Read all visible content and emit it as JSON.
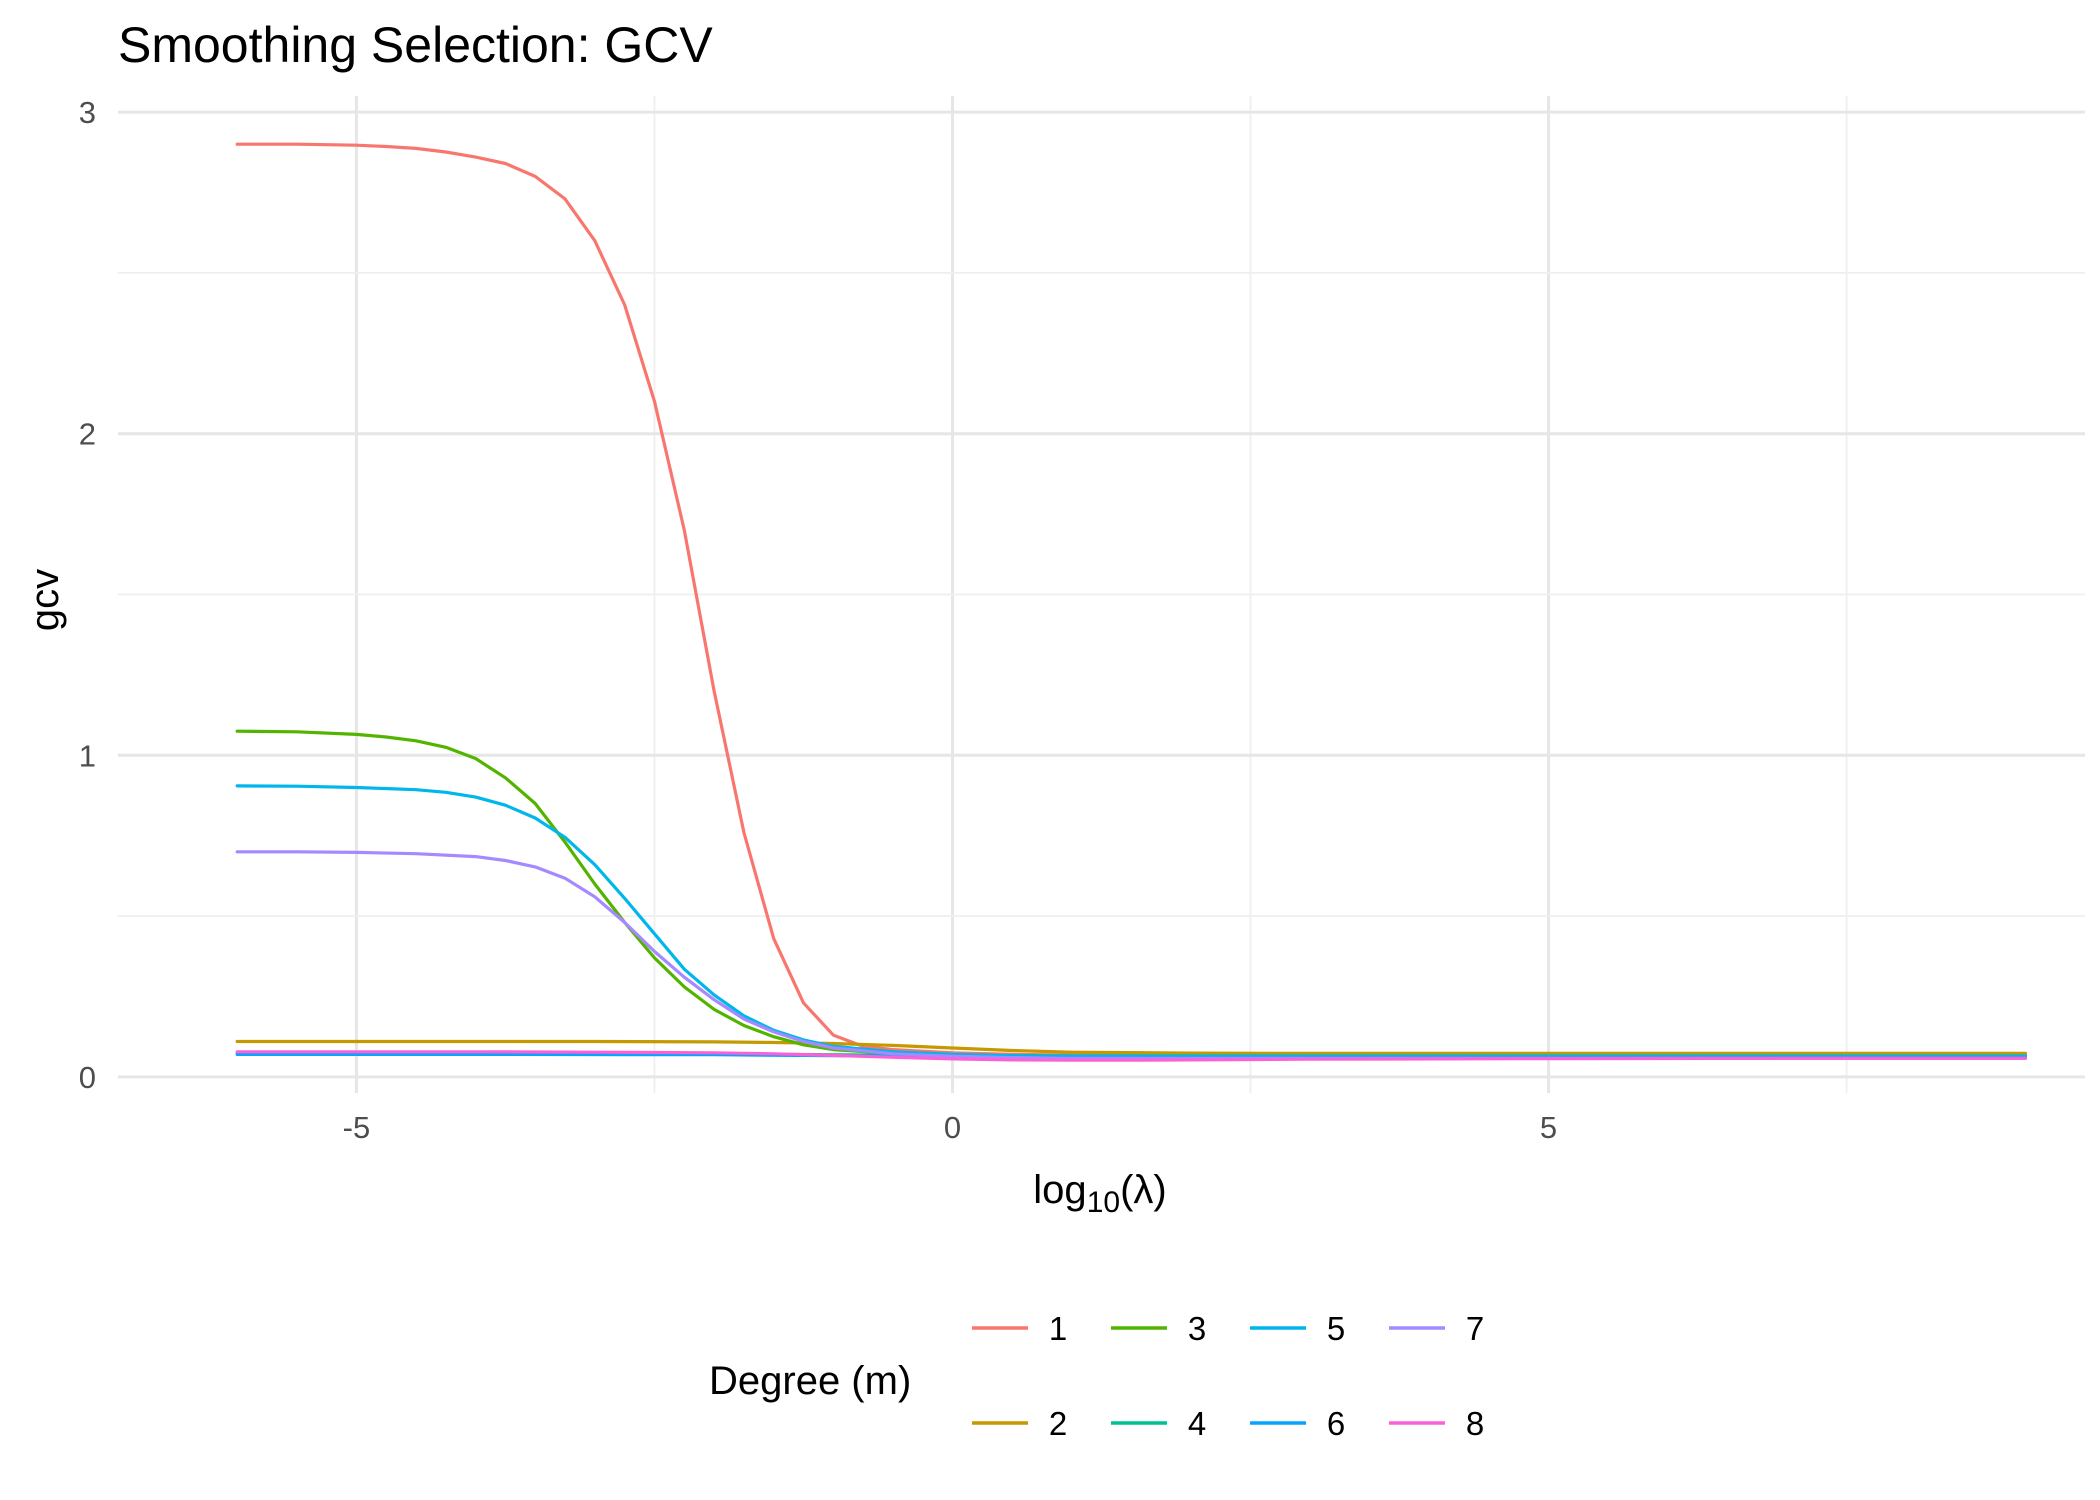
{
  "chart_data": {
    "type": "line",
    "title": "Smoothing Selection: GCV",
    "xlabel": {
      "main": "log",
      "subscript": "10",
      "argument": "(λ)"
    },
    "ylabel": "gcv",
    "xlim": [
      -7,
      9.5
    ],
    "ylim": [
      -0.05,
      3.05
    ],
    "x_ticks": [
      -5,
      0,
      5
    ],
    "x_tick_labels": [
      "-5",
      "0",
      "5"
    ],
    "y_ticks": [
      0,
      1,
      2,
      3
    ],
    "y_tick_labels": [
      "0",
      "1",
      "2",
      "3"
    ],
    "grid": true,
    "legend": {
      "title": "Degree (m)",
      "position": "bottom",
      "entries": [
        "1",
        "2",
        "3",
        "4",
        "5",
        "6",
        "7",
        "8"
      ]
    },
    "series": [
      {
        "name": "1",
        "color": "#F8766D",
        "x": [
          -6,
          -5.5,
          -5,
          -4.75,
          -4.5,
          -4.25,
          -4,
          -3.75,
          -3.5,
          -3.25,
          -3,
          -2.75,
          -2.5,
          -2.25,
          -2,
          -1.75,
          -1.5,
          -1.25,
          -1,
          -0.75,
          -0.5,
          0,
          0.5,
          1,
          2,
          3,
          5,
          7,
          9
        ],
        "y": [
          2.9,
          2.9,
          2.897,
          2.893,
          2.887,
          2.876,
          2.86,
          2.84,
          2.8,
          2.73,
          2.6,
          2.4,
          2.1,
          1.7,
          1.2,
          0.76,
          0.43,
          0.23,
          0.13,
          0.095,
          0.085,
          0.075,
          0.07,
          0.068,
          0.068,
          0.068,
          0.068,
          0.068,
          0.068
        ]
      },
      {
        "name": "2",
        "color": "#C49A00",
        "x": [
          -6,
          -5,
          -4,
          -3,
          -2,
          -1.5,
          -1,
          -0.5,
          0,
          0.5,
          1,
          2,
          3,
          5,
          7,
          9
        ],
        "y": [
          0.11,
          0.11,
          0.11,
          0.11,
          0.109,
          0.107,
          0.104,
          0.098,
          0.09,
          0.082,
          0.077,
          0.074,
          0.073,
          0.073,
          0.073,
          0.073
        ]
      },
      {
        "name": "3",
        "color": "#53B400",
        "x": [
          -6,
          -5.5,
          -5,
          -4.75,
          -4.5,
          -4.25,
          -4,
          -3.75,
          -3.5,
          -3.25,
          -3,
          -2.75,
          -2.5,
          -2.25,
          -2,
          -1.75,
          -1.5,
          -1.25,
          -1,
          -0.5,
          0,
          0.5,
          1,
          2,
          3,
          5,
          7,
          9
        ],
        "y": [
          1.075,
          1.073,
          1.065,
          1.057,
          1.045,
          1.025,
          0.99,
          0.93,
          0.85,
          0.73,
          0.6,
          0.48,
          0.37,
          0.28,
          0.21,
          0.16,
          0.125,
          0.1,
          0.085,
          0.073,
          0.068,
          0.066,
          0.065,
          0.065,
          0.065,
          0.065,
          0.065,
          0.065
        ]
      },
      {
        "name": "4",
        "color": "#00C094",
        "x": [
          -6,
          -4,
          -2,
          -1,
          0,
          1,
          3,
          5,
          7,
          9
        ],
        "y": [
          0.072,
          0.072,
          0.071,
          0.069,
          0.066,
          0.064,
          0.064,
          0.064,
          0.064,
          0.064
        ]
      },
      {
        "name": "5",
        "color": "#00B6EB",
        "x": [
          -6,
          -5.5,
          -5,
          -4.5,
          -4.25,
          -4,
          -3.75,
          -3.5,
          -3.25,
          -3,
          -2.75,
          -2.5,
          -2.25,
          -2,
          -1.75,
          -1.5,
          -1.25,
          -1,
          -0.5,
          0,
          0.5,
          1,
          2,
          3,
          5,
          7,
          9
        ],
        "y": [
          0.905,
          0.904,
          0.9,
          0.893,
          0.885,
          0.87,
          0.845,
          0.805,
          0.745,
          0.66,
          0.555,
          0.445,
          0.335,
          0.255,
          0.19,
          0.145,
          0.115,
          0.095,
          0.078,
          0.07,
          0.066,
          0.065,
          0.065,
          0.065,
          0.065,
          0.065,
          0.065
        ]
      },
      {
        "name": "6",
        "color": "#06A4FF",
        "x": [
          -6,
          -4,
          -2,
          -1,
          0,
          1,
          3,
          5,
          7,
          9
        ],
        "y": [
          0.07,
          0.07,
          0.069,
          0.066,
          0.062,
          0.06,
          0.06,
          0.06,
          0.06,
          0.06
        ]
      },
      {
        "name": "7",
        "color": "#A58AFF",
        "x": [
          -6,
          -5.5,
          -5,
          -4.5,
          -4,
          -3.75,
          -3.5,
          -3.25,
          -3,
          -2.75,
          -2.5,
          -2.25,
          -2,
          -1.75,
          -1.5,
          -1.25,
          -1,
          -0.5,
          0,
          0.5,
          1,
          2,
          3,
          5,
          7,
          9
        ],
        "y": [
          0.7,
          0.7,
          0.698,
          0.694,
          0.685,
          0.673,
          0.653,
          0.618,
          0.56,
          0.48,
          0.39,
          0.31,
          0.24,
          0.18,
          0.14,
          0.11,
          0.09,
          0.072,
          0.064,
          0.06,
          0.058,
          0.058,
          0.058,
          0.058,
          0.058,
          0.058
        ]
      },
      {
        "name": "8",
        "color": "#FB61D7",
        "x": [
          -6,
          -5,
          -4,
          -3,
          -2,
          -1.5,
          -1,
          -0.5,
          0,
          0.5,
          1,
          1.5,
          2,
          3,
          5,
          7,
          9
        ],
        "y": [
          0.078,
          0.078,
          0.078,
          0.077,
          0.075,
          0.072,
          0.067,
          0.061,
          0.056,
          0.053,
          0.052,
          0.052,
          0.053,
          0.055,
          0.057,
          0.058,
          0.058
        ]
      }
    ]
  }
}
